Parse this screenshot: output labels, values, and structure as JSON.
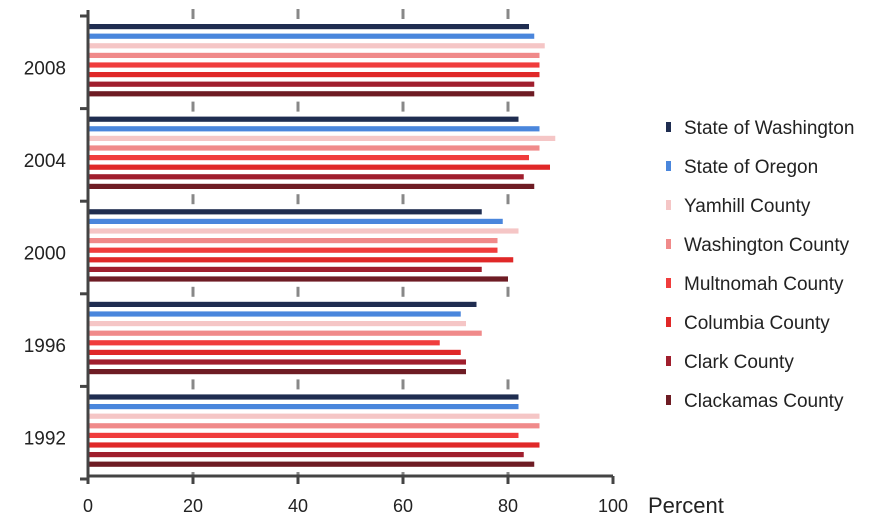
{
  "chart_data": {
    "type": "bar",
    "orientation": "horizontal",
    "x_unit_label": "Percent",
    "xlim": [
      0,
      100
    ],
    "x_ticks": [
      "0",
      "20",
      "40",
      "60",
      "80",
      "100"
    ],
    "categories": [
      "2008",
      "2004",
      "2000",
      "1996",
      "1992"
    ],
    "series": [
      {
        "name": "State of Washington",
        "color": "#1f2d50",
        "values": [
          84,
          82,
          75,
          74,
          82
        ]
      },
      {
        "name": "State of Oregon",
        "color": "#4a86dc",
        "values": [
          85,
          86,
          79,
          71,
          82
        ]
      },
      {
        "name": "Yamhill County",
        "color": "#f5c6c6",
        "values": [
          87,
          89,
          82,
          72,
          86
        ]
      },
      {
        "name": "Washington County",
        "color": "#f08a8a",
        "values": [
          86,
          86,
          78,
          75,
          86
        ]
      },
      {
        "name": "Multnomah County",
        "color": "#f03c3c",
        "values": [
          86,
          84,
          78,
          67,
          82
        ]
      },
      {
        "name": "Columbia County",
        "color": "#e02828",
        "values": [
          86,
          88,
          81,
          71,
          86
        ]
      },
      {
        "name": "Clark County",
        "color": "#a01e2d",
        "values": [
          85,
          83,
          75,
          72,
          83
        ]
      },
      {
        "name": "Clackamas County",
        "color": "#6e1c24",
        "values": [
          85,
          85,
          80,
          72,
          85
        ]
      }
    ],
    "legend_position": "right"
  }
}
